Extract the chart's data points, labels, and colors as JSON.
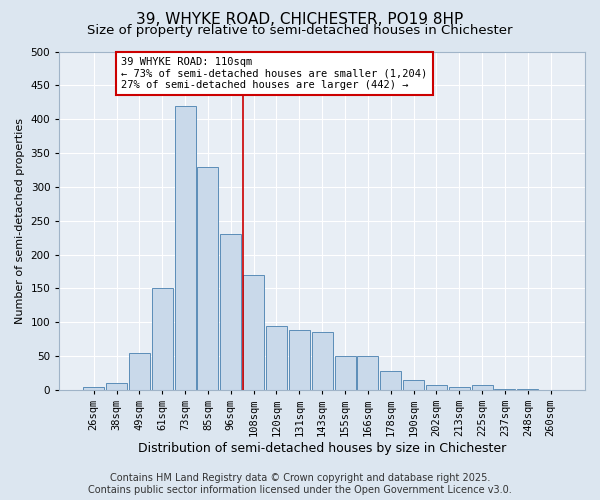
{
  "title": "39, WHYKE ROAD, CHICHESTER, PO19 8HP",
  "subtitle": "Size of property relative to semi-detached houses in Chichester",
  "xlabel": "Distribution of semi-detached houses by size in Chichester",
  "ylabel": "Number of semi-detached properties",
  "bar_labels": [
    "26sqm",
    "38sqm",
    "49sqm",
    "61sqm",
    "73sqm",
    "85sqm",
    "96sqm",
    "108sqm",
    "120sqm",
    "131sqm",
    "143sqm",
    "155sqm",
    "166sqm",
    "178sqm",
    "190sqm",
    "202sqm",
    "213sqm",
    "225sqm",
    "237sqm",
    "248sqm",
    "260sqm"
  ],
  "bar_values": [
    5,
    10,
    55,
    150,
    420,
    330,
    230,
    170,
    95,
    88,
    85,
    50,
    50,
    28,
    15,
    8,
    5,
    7,
    2,
    1,
    0
  ],
  "bar_color": "#c9d9ea",
  "bar_edge_color": "#5b8db8",
  "vline_index": 7,
  "vline_color": "#cc0000",
  "annotation_text": "39 WHYKE ROAD: 110sqm\n← 73% of semi-detached houses are smaller (1,204)\n27% of semi-detached houses are larger (442) →",
  "annotation_box_color": "#ffffff",
  "annotation_box_edge_color": "#cc0000",
  "ylim": [
    0,
    500
  ],
  "yticks": [
    0,
    50,
    100,
    150,
    200,
    250,
    300,
    350,
    400,
    450,
    500
  ],
  "footer_line1": "Contains HM Land Registry data © Crown copyright and database right 2025.",
  "footer_line2": "Contains public sector information licensed under the Open Government Licence v3.0.",
  "bg_color": "#dce6f0",
  "plot_bg_color": "#e8eef5",
  "grid_color": "#ffffff",
  "title_fontsize": 11,
  "subtitle_fontsize": 9.5,
  "xlabel_fontsize": 9,
  "ylabel_fontsize": 8,
  "tick_fontsize": 7.5,
  "annot_fontsize": 7.5,
  "footer_fontsize": 7
}
